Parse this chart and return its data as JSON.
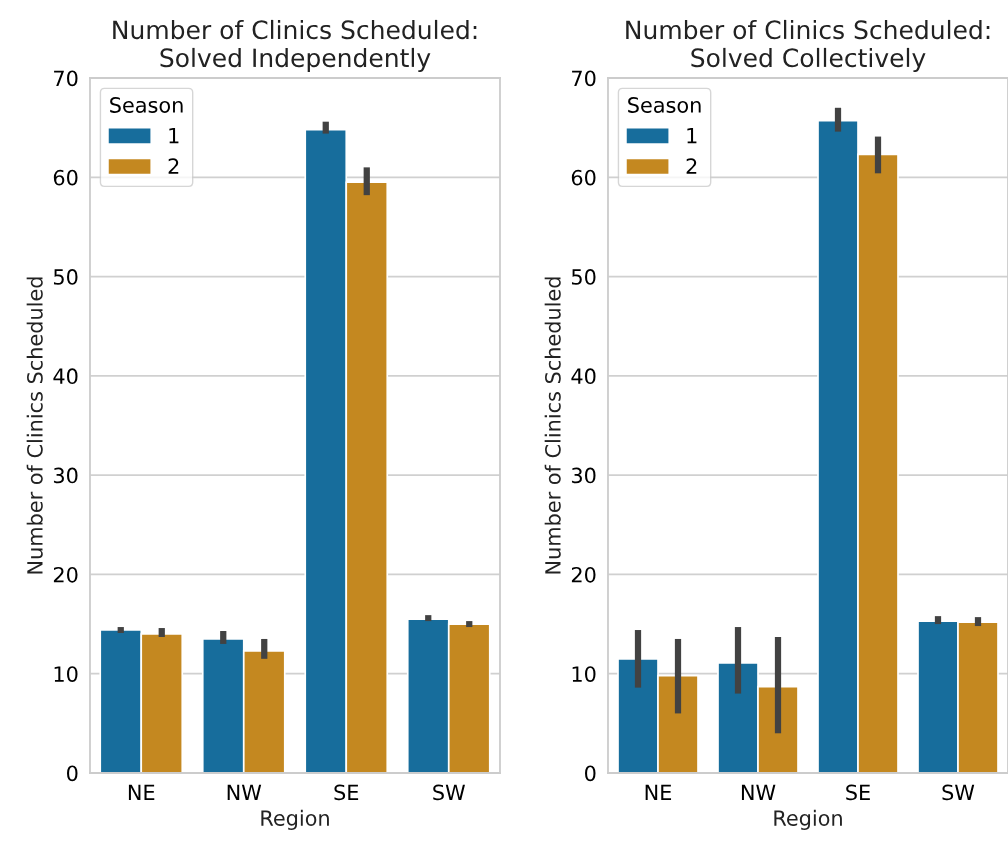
{
  "chart_data": [
    {
      "type": "bar",
      "title": "Number of Clinics Scheduled:\nSolved Independently",
      "xlabel": "Region",
      "ylabel": "Number of Clinics Scheduled",
      "legend_title": "Season",
      "categories": [
        "NE",
        "NW",
        "SE",
        "SW"
      ],
      "ylim": [
        0,
        70
      ],
      "yticks": [
        0,
        10,
        20,
        30,
        40,
        50,
        60,
        70
      ],
      "grid": "y",
      "legend": "top left",
      "series": [
        {
          "name": "1",
          "color": "#176d9c",
          "values": [
            14.4,
            13.5,
            64.8,
            15.5
          ],
          "errors": [
            [
              14.1,
              14.7
            ],
            [
              13.0,
              14.3
            ],
            [
              64.4,
              65.6
            ],
            [
              15.3,
              15.9
            ]
          ]
        },
        {
          "name": "2",
          "color": "#c48820",
          "values": [
            14.0,
            12.3,
            59.5,
            15.0
          ],
          "errors": [
            [
              13.7,
              14.6
            ],
            [
              11.5,
              13.5
            ],
            [
              58.2,
              61.0
            ],
            [
              14.7,
              15.3
            ]
          ]
        }
      ]
    },
    {
      "type": "bar",
      "title": "Number of Clinics Scheduled:\nSolved Collectively",
      "xlabel": "Region",
      "ylabel": "Number of Clinics Scheduled",
      "legend_title": "Season",
      "categories": [
        "NE",
        "NW",
        "SE",
        "SW"
      ],
      "ylim": [
        0,
        70
      ],
      "yticks": [
        0,
        10,
        20,
        30,
        40,
        50,
        60,
        70
      ],
      "grid": "y",
      "legend": "top left",
      "series": [
        {
          "name": "1",
          "color": "#176d9c",
          "values": [
            11.5,
            11.1,
            65.7,
            15.3
          ],
          "errors": [
            [
              8.6,
              14.4
            ],
            [
              8.0,
              14.7
            ],
            [
              64.6,
              67.0
            ],
            [
              15.0,
              15.8
            ]
          ]
        },
        {
          "name": "2",
          "color": "#c48820",
          "values": [
            9.8,
            8.7,
            62.3,
            15.2
          ],
          "errors": [
            [
              6.0,
              13.5
            ],
            [
              4.0,
              13.7
            ],
            [
              60.4,
              64.1
            ],
            [
              14.8,
              15.7
            ]
          ]
        }
      ]
    }
  ]
}
